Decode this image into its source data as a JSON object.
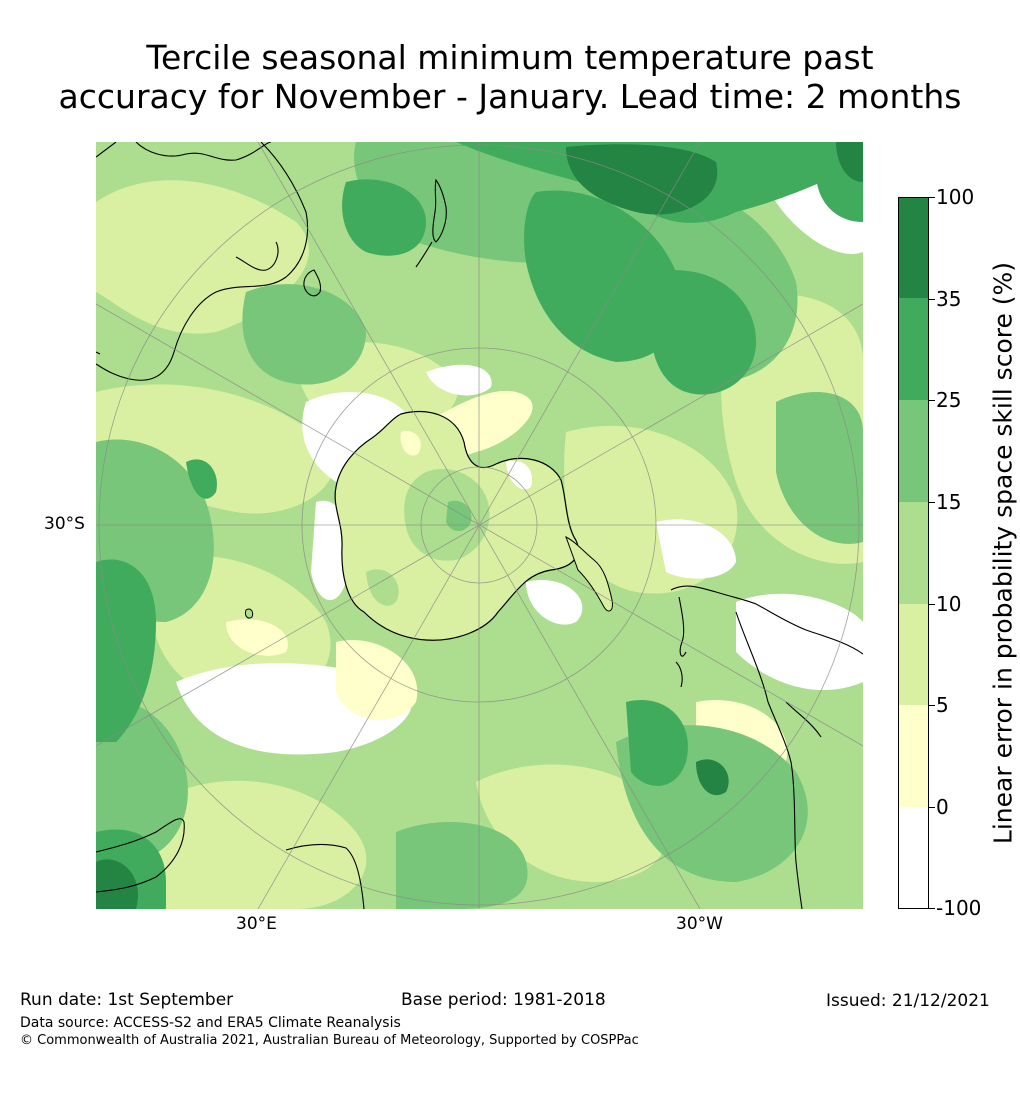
{
  "title": {
    "line1": "Tercile seasonal minimum temperature past",
    "line2": "accuracy for November - January. Lead time: 2 months"
  },
  "map": {
    "projection": "south-polar-stereographic",
    "lat_label": "30°S",
    "lon_labels": [
      "30°E",
      "30°W"
    ],
    "coastline_color": "#000000",
    "gridline_color": "#8a8a8a"
  },
  "colorbar": {
    "label": "Linear error in probability space skill score (%)",
    "levels": [
      {
        "from": "-100",
        "to": "0",
        "color": "#ffffff"
      },
      {
        "from": "0",
        "to": "5",
        "color": "#ffffcc"
      },
      {
        "from": "5",
        "to": "10",
        "color": "#d9f0a3"
      },
      {
        "from": "10",
        "to": "15",
        "color": "#addd8e"
      },
      {
        "from": "15",
        "to": "25",
        "color": "#78c679"
      },
      {
        "from": "25",
        "to": "35",
        "color": "#41ab5d"
      },
      {
        "from": "35",
        "to": "100",
        "color": "#238443"
      }
    ],
    "tick_labels": [
      "-100",
      "0",
      "5",
      "10",
      "15",
      "25",
      "35",
      "100"
    ]
  },
  "footer": {
    "run_date": "Run date: 1st September",
    "base_period": "Base period: 1981-2018",
    "issued": "Issued: 21/12/2021",
    "data_source": "Data source: ACCESS-S2 and ERA5 Climate Reanalysis",
    "copyright": "© Commonwealth of Australia 2021, Australian Bureau of Meteorology, Supported by COSPPac"
  }
}
